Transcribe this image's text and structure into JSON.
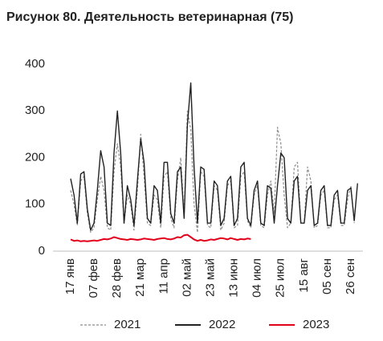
{
  "chart_data": {
    "type": "line",
    "title": "Рисунок 80. Деятельность ветеринарная (75)",
    "categories": [
      "17 янв",
      null,
      null,
      null,
      null,
      null,
      null,
      "07 фев",
      null,
      null,
      null,
      null,
      null,
      null,
      "28 фев",
      null,
      null,
      null,
      null,
      null,
      null,
      "21 мар",
      null,
      null,
      null,
      null,
      null,
      null,
      "11 апр",
      null,
      null,
      null,
      null,
      null,
      null,
      "02 май",
      null,
      null,
      null,
      null,
      null,
      null,
      "23 май",
      null,
      null,
      null,
      null,
      null,
      null,
      "13 июн",
      null,
      null,
      null,
      null,
      null,
      null,
      "04 июл",
      null,
      null,
      null,
      null,
      null,
      null,
      "25 июл",
      null,
      null,
      null,
      null,
      null,
      null,
      "15 авг",
      null,
      null,
      null,
      null,
      null,
      null,
      "05 сен",
      null,
      null,
      null,
      null,
      null,
      null,
      "26 сен",
      null,
      null
    ],
    "series": [
      {
        "name": "2021",
        "color": "#8c8c8c",
        "dash": true,
        "values": [
          130,
          100,
          55,
          150,
          160,
          80,
          40,
          50,
          110,
          160,
          130,
          50,
          45,
          170,
          230,
          180,
          60,
          120,
          100,
          45,
          130,
          250,
          160,
          60,
          55,
          120,
          110,
          50,
          160,
          170,
          70,
          50,
          150,
          200,
          75,
          300,
          260,
          100,
          40,
          170,
          160,
          55,
          50,
          140,
          130,
          45,
          60,
          140,
          150,
          50,
          55,
          160,
          170,
          65,
          50,
          120,
          140,
          55,
          50,
          120,
          150,
          80,
          265,
          230,
          120,
          50,
          60,
          180,
          190,
          60,
          60,
          180,
          150,
          50,
          55,
          120,
          130,
          50,
          50,
          110,
          120,
          55,
          55,
          110,
          140,
          60,
          null
        ]
      },
      {
        "name": "2022",
        "color": "#222222",
        "dash": false,
        "values": [
          155,
          120,
          60,
          165,
          170,
          90,
          45,
          60,
          130,
          215,
          180,
          60,
          55,
          210,
          300,
          210,
          60,
          140,
          110,
          55,
          150,
          240,
          190,
          70,
          60,
          140,
          130,
          60,
          190,
          190,
          80,
          60,
          170,
          180,
          70,
          270,
          360,
          180,
          60,
          180,
          175,
          60,
          60,
          150,
          140,
          55,
          70,
          150,
          160,
          55,
          70,
          180,
          190,
          70,
          55,
          130,
          150,
          60,
          55,
          140,
          135,
          60,
          140,
          210,
          200,
          70,
          60,
          150,
          160,
          60,
          60,
          130,
          140,
          55,
          60,
          130,
          140,
          55,
          55,
          120,
          130,
          60,
          60,
          130,
          135,
          65,
          145
        ]
      },
      {
        "name": "2023",
        "color": "#e3001b",
        "dash": false,
        "values": [
          25,
          22,
          23,
          21,
          22,
          21,
          22,
          23,
          22,
          24,
          26,
          25,
          27,
          30,
          28,
          26,
          25,
          24,
          26,
          25,
          24,
          25,
          27,
          26,
          25,
          24,
          26,
          27,
          28,
          26,
          25,
          27,
          30,
          29,
          34,
          35,
          30,
          25,
          22,
          24,
          22,
          23,
          25,
          24,
          26,
          28,
          27,
          25,
          28,
          26,
          24,
          26,
          25,
          27,
          26,
          null,
          null,
          null,
          null,
          null,
          null,
          null,
          null,
          null,
          null,
          null,
          null,
          null,
          null,
          null,
          null,
          null,
          null,
          null,
          null,
          null,
          null,
          null,
          null,
          null,
          null,
          null,
          null,
          null,
          null,
          null,
          null
        ]
      }
    ],
    "ylim": [
      0,
      400
    ],
    "yticks": [
      0,
      100,
      200,
      300,
      400
    ],
    "grid": false
  }
}
